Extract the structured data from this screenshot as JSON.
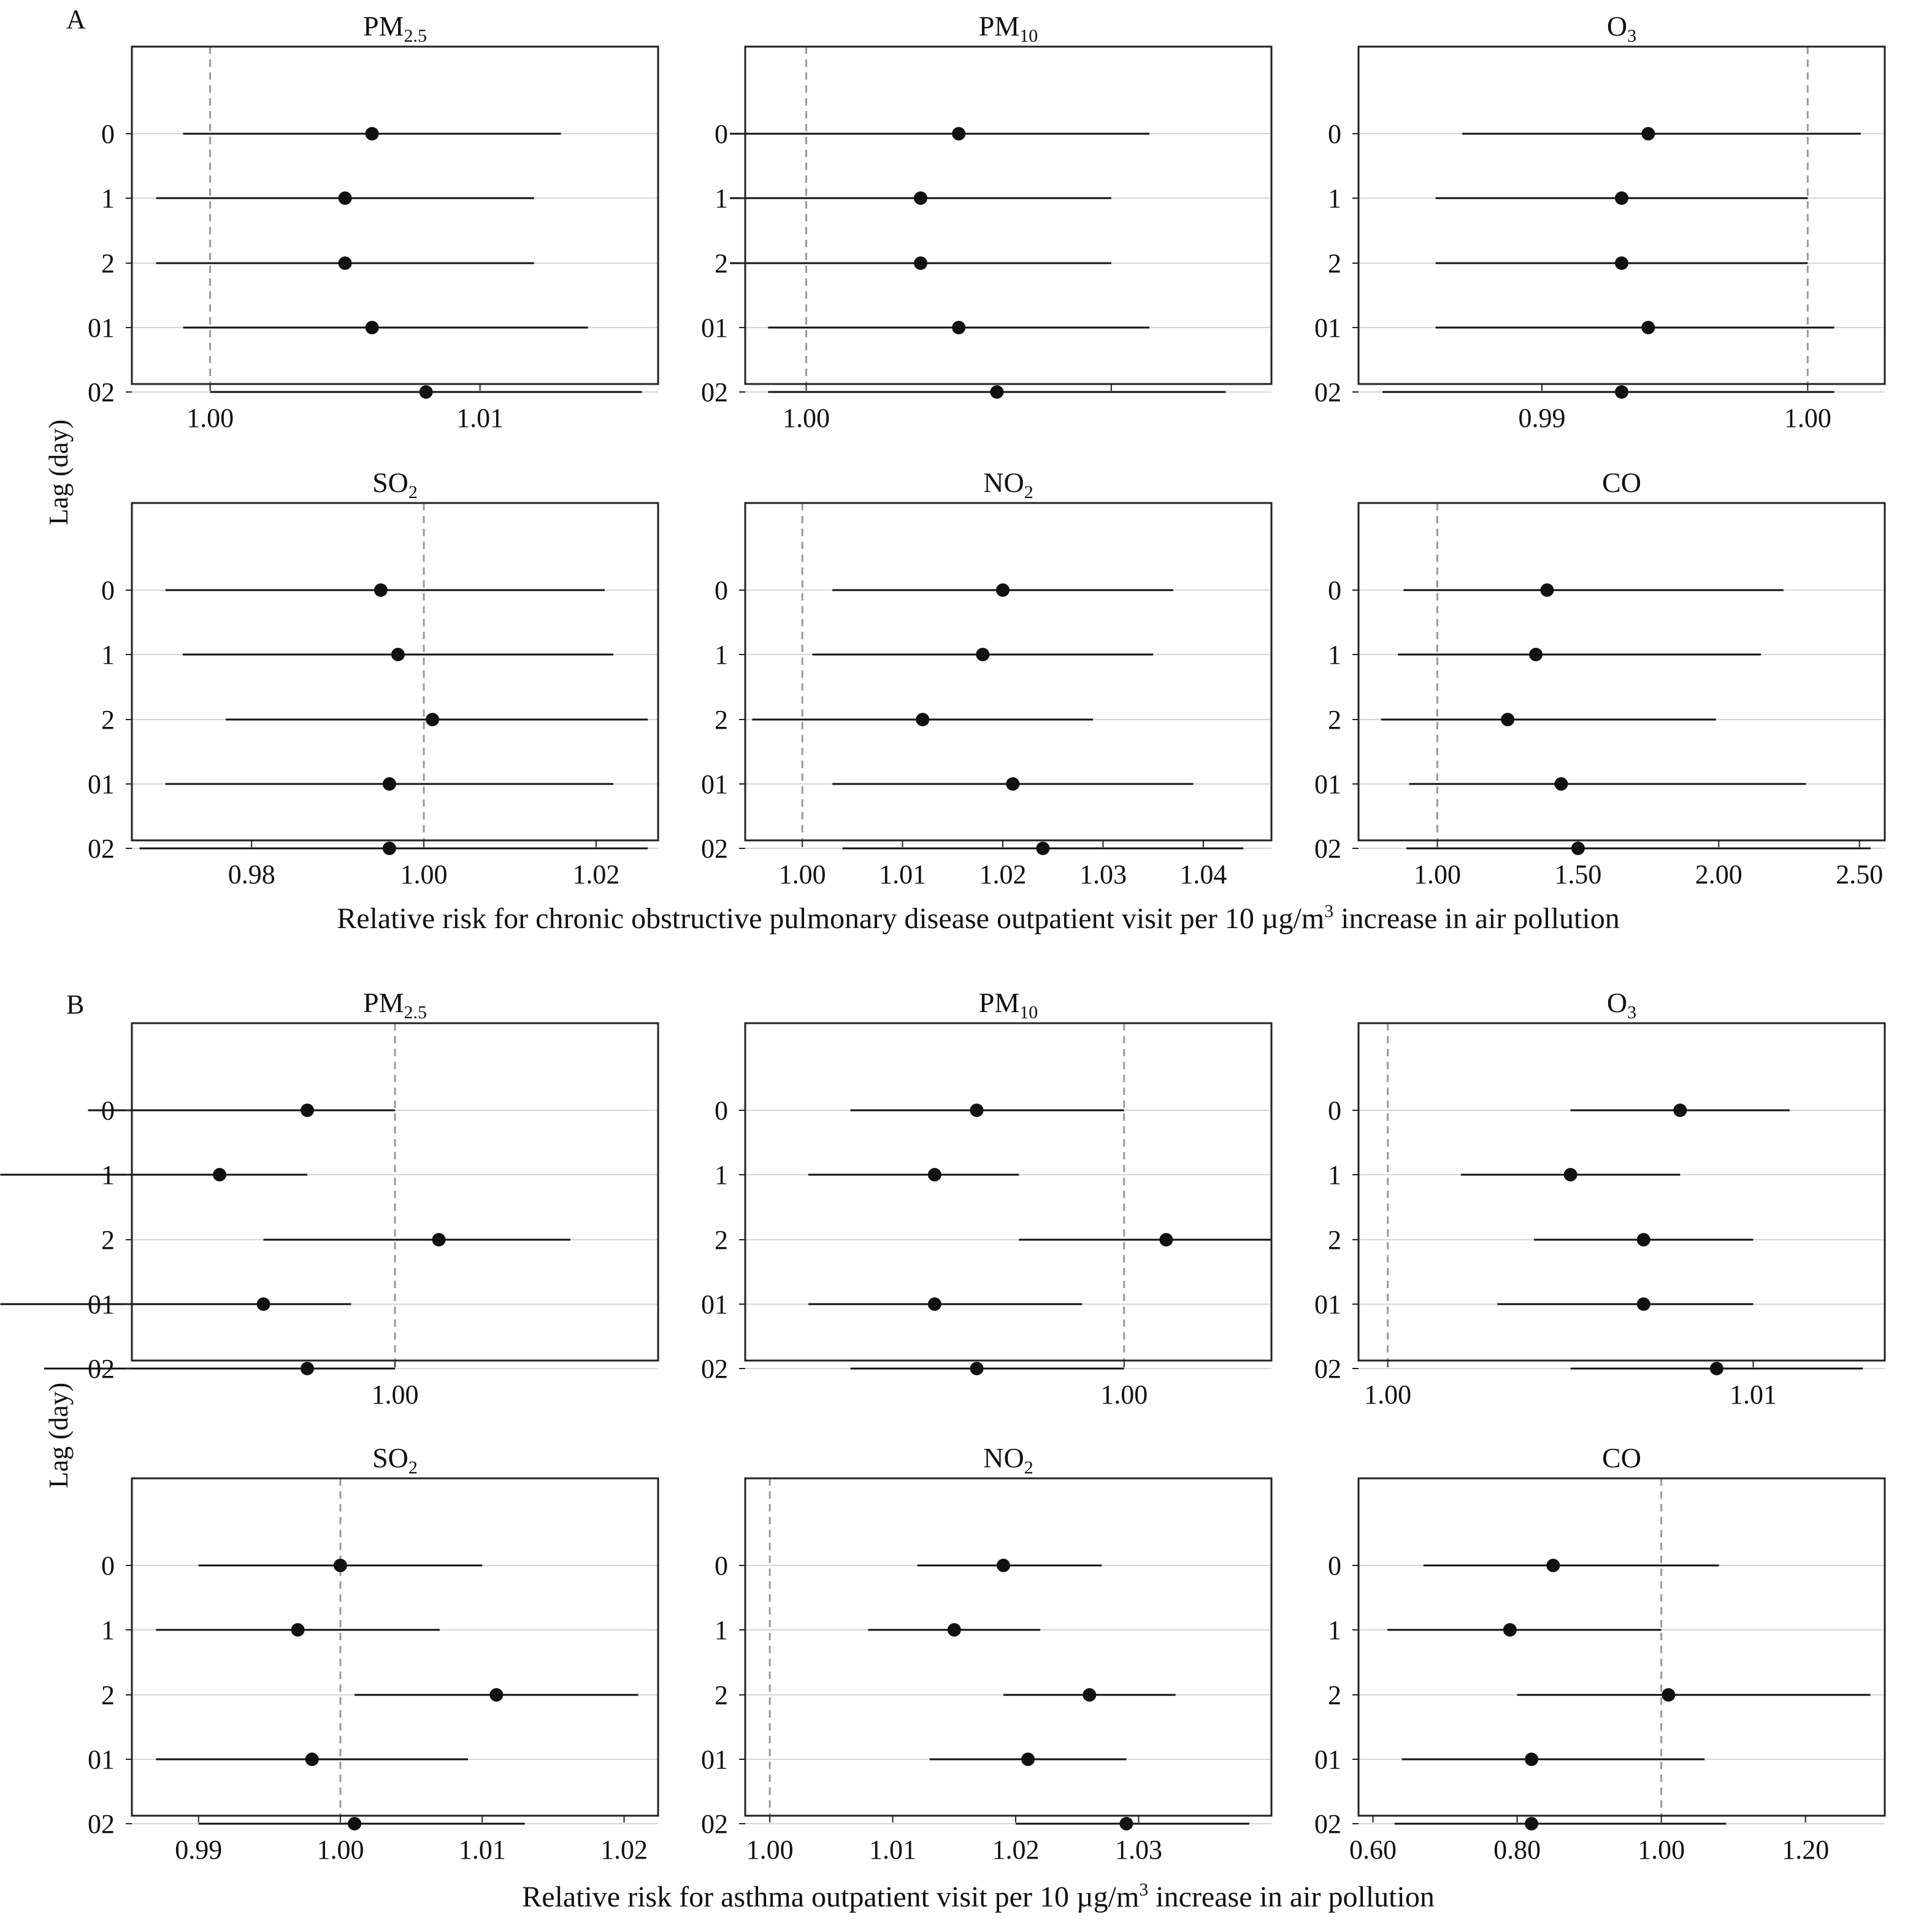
{
  "figure": {
    "sections": [
      {
        "letter": "A",
        "xlabel_prefix": "Relative risk for chronic obstructive pulmonary disease outpatient visit per 10 µg/m",
        "xlabel_sup": "3",
        "xlabel_suffix": " increase in air pollution"
      },
      {
        "letter": "B",
        "xlabel_prefix": "Relative risk for asthma outpatient visit per 10 µg/m",
        "xlabel_sup": "3",
        "xlabel_suffix": " increase in air pollution"
      }
    ],
    "ylabel": "Lag (day)",
    "lags": [
      "0",
      "1",
      "2",
      "01",
      "02"
    ],
    "colors": {
      "point": "#111111",
      "ci_line": "#111111",
      "refline": "#999999",
      "gridline": "#d6d6d6",
      "frame": "#222222",
      "text": "#111111"
    }
  },
  "chart_data": [
    {
      "type": "scatter",
      "section": "A",
      "title_main": "PM",
      "title_sub": "2.5",
      "xlim": [
        0.9971,
        1.0166
      ],
      "ref": 1.0,
      "xticks": [
        1.0,
        1.01
      ],
      "tick_labels": [
        "1.00",
        "1.01"
      ],
      "categories": [
        "0",
        "1",
        "2",
        "01",
        "02"
      ],
      "estimate": [
        1.006,
        1.005,
        1.005,
        1.006,
        1.008
      ],
      "lower": [
        0.999,
        0.998,
        0.998,
        0.999,
        1.0
      ],
      "upper": [
        1.013,
        1.012,
        1.012,
        1.014,
        1.016
      ]
    },
    {
      "type": "scatter",
      "section": "A",
      "title_main": "PM",
      "title_sub": "10",
      "xlim": [
        0.9984,
        1.0122
      ],
      "ref": 1.0,
      "xticks": [
        1.0,
        1.008
      ],
      "tick_labels": [
        "1.00",
        ""
      ],
      "categories": [
        "0",
        "1",
        "2",
        "01",
        "02"
      ],
      "estimate": [
        1.004,
        1.003,
        1.003,
        1.004,
        1.005
      ],
      "lower": [
        0.998,
        0.998,
        0.998,
        0.999,
        0.999
      ],
      "upper": [
        1.009,
        1.008,
        1.008,
        1.009,
        1.011
      ]
    },
    {
      "type": "scatter",
      "section": "A",
      "title_main": "O",
      "title_sub": "3",
      "xlim": [
        0.9831,
        1.0029
      ],
      "ref": 1.0,
      "xticks": [
        0.99,
        1.0
      ],
      "tick_labels": [
        "0.99",
        "1.00"
      ],
      "categories": [
        "0",
        "1",
        "2",
        "01",
        "02"
      ],
      "estimate": [
        0.994,
        0.993,
        0.993,
        0.994,
        0.993
      ],
      "lower": [
        0.987,
        0.986,
        0.986,
        0.986,
        0.984
      ],
      "upper": [
        1.002,
        1.0,
        1.0,
        1.001,
        1.001
      ]
    },
    {
      "type": "scatter",
      "section": "A",
      "title_main": "SO",
      "title_sub": "2",
      "xlim": [
        0.9661,
        1.0272
      ],
      "ref": 1.0,
      "xticks": [
        0.98,
        1.0,
        1.02
      ],
      "tick_labels": [
        "0.98",
        "1.00",
        "1.02"
      ],
      "categories": [
        "0",
        "1",
        "2",
        "01",
        "02"
      ],
      "estimate": [
        0.995,
        0.997,
        1.001,
        0.996,
        0.996
      ],
      "lower": [
        0.97,
        0.972,
        0.977,
        0.97,
        0.967
      ],
      "upper": [
        1.021,
        1.022,
        1.026,
        1.022,
        1.026
      ]
    },
    {
      "type": "scatter",
      "section": "A",
      "title_main": "NO",
      "title_sub": "2",
      "xlim": [
        0.9943,
        1.0468
      ],
      "ref": 1.0,
      "xticks": [
        1.0,
        1.01,
        1.02,
        1.03,
        1.04
      ],
      "tick_labels": [
        "1.00",
        "1.01",
        "1.02",
        "1.03",
        "1.04"
      ],
      "categories": [
        "0",
        "1",
        "2",
        "01",
        "02"
      ],
      "estimate": [
        1.02,
        1.018,
        1.012,
        1.021,
        1.024
      ],
      "lower": [
        1.003,
        1.001,
        0.995,
        1.003,
        1.004
      ],
      "upper": [
        1.037,
        1.035,
        1.029,
        1.039,
        1.044
      ]
    },
    {
      "type": "scatter",
      "section": "A",
      "title_main": "CO",
      "title_sub": "",
      "xlim": [
        0.72,
        2.59
      ],
      "ref": 1.0,
      "xticks": [
        1.0,
        1.5,
        2.0,
        2.5
      ],
      "tick_labels": [
        "1.00",
        "1.50",
        "2.00",
        "2.50"
      ],
      "categories": [
        "0",
        "1",
        "2",
        "01",
        "02"
      ],
      "estimate": [
        1.39,
        1.35,
        1.25,
        1.44,
        1.5
      ],
      "lower": [
        0.88,
        0.86,
        0.8,
        0.9,
        0.89
      ],
      "upper": [
        2.23,
        2.15,
        1.99,
        2.31,
        2.54
      ]
    },
    {
      "type": "scatter",
      "section": "B",
      "title_main": "PM",
      "title_sub": "2.5",
      "xlim": [
        0.9982,
        1.0018
      ],
      "ref": 1.0,
      "xticks": [
        1.0
      ],
      "tick_labels": [
        "1.00"
      ],
      "categories": [
        "0",
        "1",
        "2",
        "01",
        "02"
      ],
      "estimate": [
        0.9994,
        0.9988,
        1.0003,
        0.9991,
        0.9994
      ],
      "lower": [
        0.9979,
        0.9973,
        0.9991,
        0.9973,
        0.9976
      ],
      "upper": [
        1.0,
        0.9994,
        1.0012,
        0.9997,
        1.0
      ]
    },
    {
      "type": "scatter",
      "section": "B",
      "title_main": "PM",
      "title_sub": "10",
      "xlim": [
        0.9982,
        1.0007
      ],
      "ref": 1.0,
      "xticks": [
        1.0
      ],
      "tick_labels": [
        "1.00"
      ],
      "categories": [
        "0",
        "1",
        "2",
        "01",
        "02"
      ],
      "estimate": [
        0.9993,
        0.9991,
        1.0002,
        0.9991,
        0.9993
      ],
      "lower": [
        0.9987,
        0.9985,
        0.9995,
        0.9985,
        0.9987
      ],
      "upper": [
        1.0,
        0.9995,
        1.0007,
        0.9998,
        1.0
      ]
    },
    {
      "type": "scatter",
      "section": "B",
      "title_main": "O",
      "title_sub": "3",
      "xlim": [
        0.9992,
        1.0136
      ],
      "ref": 1.0,
      "xticks": [
        1.0,
        1.01
      ],
      "tick_labels": [
        "1.00",
        "1.01"
      ],
      "categories": [
        "0",
        "1",
        "2",
        "01",
        "02"
      ],
      "estimate": [
        1.008,
        1.005,
        1.007,
        1.007,
        1.009
      ],
      "lower": [
        1.005,
        1.002,
        1.004,
        1.003,
        1.005
      ],
      "upper": [
        1.011,
        1.008,
        1.01,
        1.01,
        1.013
      ]
    },
    {
      "type": "scatter",
      "section": "B",
      "title_main": "SO",
      "title_sub": "2",
      "xlim": [
        0.9853,
        1.0224
      ],
      "ref": 1.0,
      "xticks": [
        0.99,
        1.0,
        1.01,
        1.02
      ],
      "tick_labels": [
        "0.99",
        "1.00",
        "1.01",
        "1.02"
      ],
      "categories": [
        "0",
        "1",
        "2",
        "01",
        "02"
      ],
      "estimate": [
        1.0,
        0.997,
        1.011,
        0.998,
        1.001
      ],
      "lower": [
        0.99,
        0.987,
        1.001,
        0.987,
        0.99
      ],
      "upper": [
        1.01,
        1.007,
        1.021,
        1.009,
        1.013
      ]
    },
    {
      "type": "scatter",
      "section": "B",
      "title_main": "NO",
      "title_sub": "2",
      "xlim": [
        0.998,
        1.0408
      ],
      "ref": 1.0,
      "xticks": [
        1.0,
        1.01,
        1.02,
        1.03
      ],
      "tick_labels": [
        "1.00",
        "1.01",
        "1.02",
        "1.03"
      ],
      "categories": [
        "0",
        "1",
        "2",
        "01",
        "02"
      ],
      "estimate": [
        1.019,
        1.015,
        1.026,
        1.021,
        1.029
      ],
      "lower": [
        1.012,
        1.008,
        1.019,
        1.013,
        1.02
      ],
      "upper": [
        1.027,
        1.022,
        1.033,
        1.029,
        1.039
      ]
    },
    {
      "type": "scatter",
      "section": "B",
      "title_main": "CO",
      "title_sub": "",
      "xlim": [
        0.58,
        1.31
      ],
      "ref": 1.0,
      "xticks": [
        0.6,
        0.8,
        1.0,
        1.2
      ],
      "tick_labels": [
        "0.60",
        "0.80",
        "1.00",
        "1.20"
      ],
      "categories": [
        "0",
        "1",
        "2",
        "01",
        "02"
      ],
      "estimate": [
        0.85,
        0.79,
        1.01,
        0.82,
        0.82
      ],
      "lower": [
        0.67,
        0.62,
        0.8,
        0.64,
        0.63
      ],
      "upper": [
        1.08,
        1.0,
        1.29,
        1.06,
        1.09
      ]
    }
  ]
}
